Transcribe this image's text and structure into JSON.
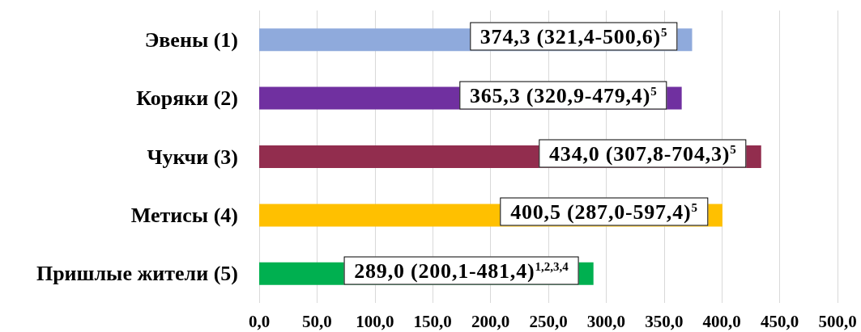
{
  "chart_data": {
    "type": "bar",
    "orientation": "horizontal",
    "categories": [
      "Эвены (1)",
      "Коряки (2)",
      "Чукчи (3)",
      "Метисы (4)",
      "Пришлые жители (5)"
    ],
    "values": [
      374.3,
      365.3,
      434.0,
      400.5,
      289.0
    ],
    "colors": [
      "#8faadc",
      "#7030a0",
      "#922d4e",
      "#ffc000",
      "#00b050"
    ],
    "value_labels": [
      "374,3 (321,4-500,6)$^{5}$",
      "365,3 (320,9-479,4)$^{5}$",
      "434,0 (307,8-704,3)$^{5}$",
      "400,5 (287,0-597,4)$^{5}$",
      "289,0 (200,1-481,4)$^{1,2,3,4}$"
    ],
    "xlim": [
      0,
      500
    ],
    "xticks": [
      {
        "value": 0,
        "label": "0,0"
      },
      {
        "value": 50,
        "label": "50,0"
      },
      {
        "value": 100,
        "label": "100,0"
      },
      {
        "value": 150,
        "label": "150,0"
      },
      {
        "value": 200,
        "label": "200,0"
      },
      {
        "value": 250,
        "label": "250,0"
      },
      {
        "value": 300,
        "label": "300,0"
      },
      {
        "value": 350,
        "label": "350,0"
      },
      {
        "value": 400,
        "label": "400,0"
      },
      {
        "value": 450,
        "label": "450,0"
      },
      {
        "value": 500,
        "label": "500,0"
      }
    ],
    "grid": "x"
  }
}
